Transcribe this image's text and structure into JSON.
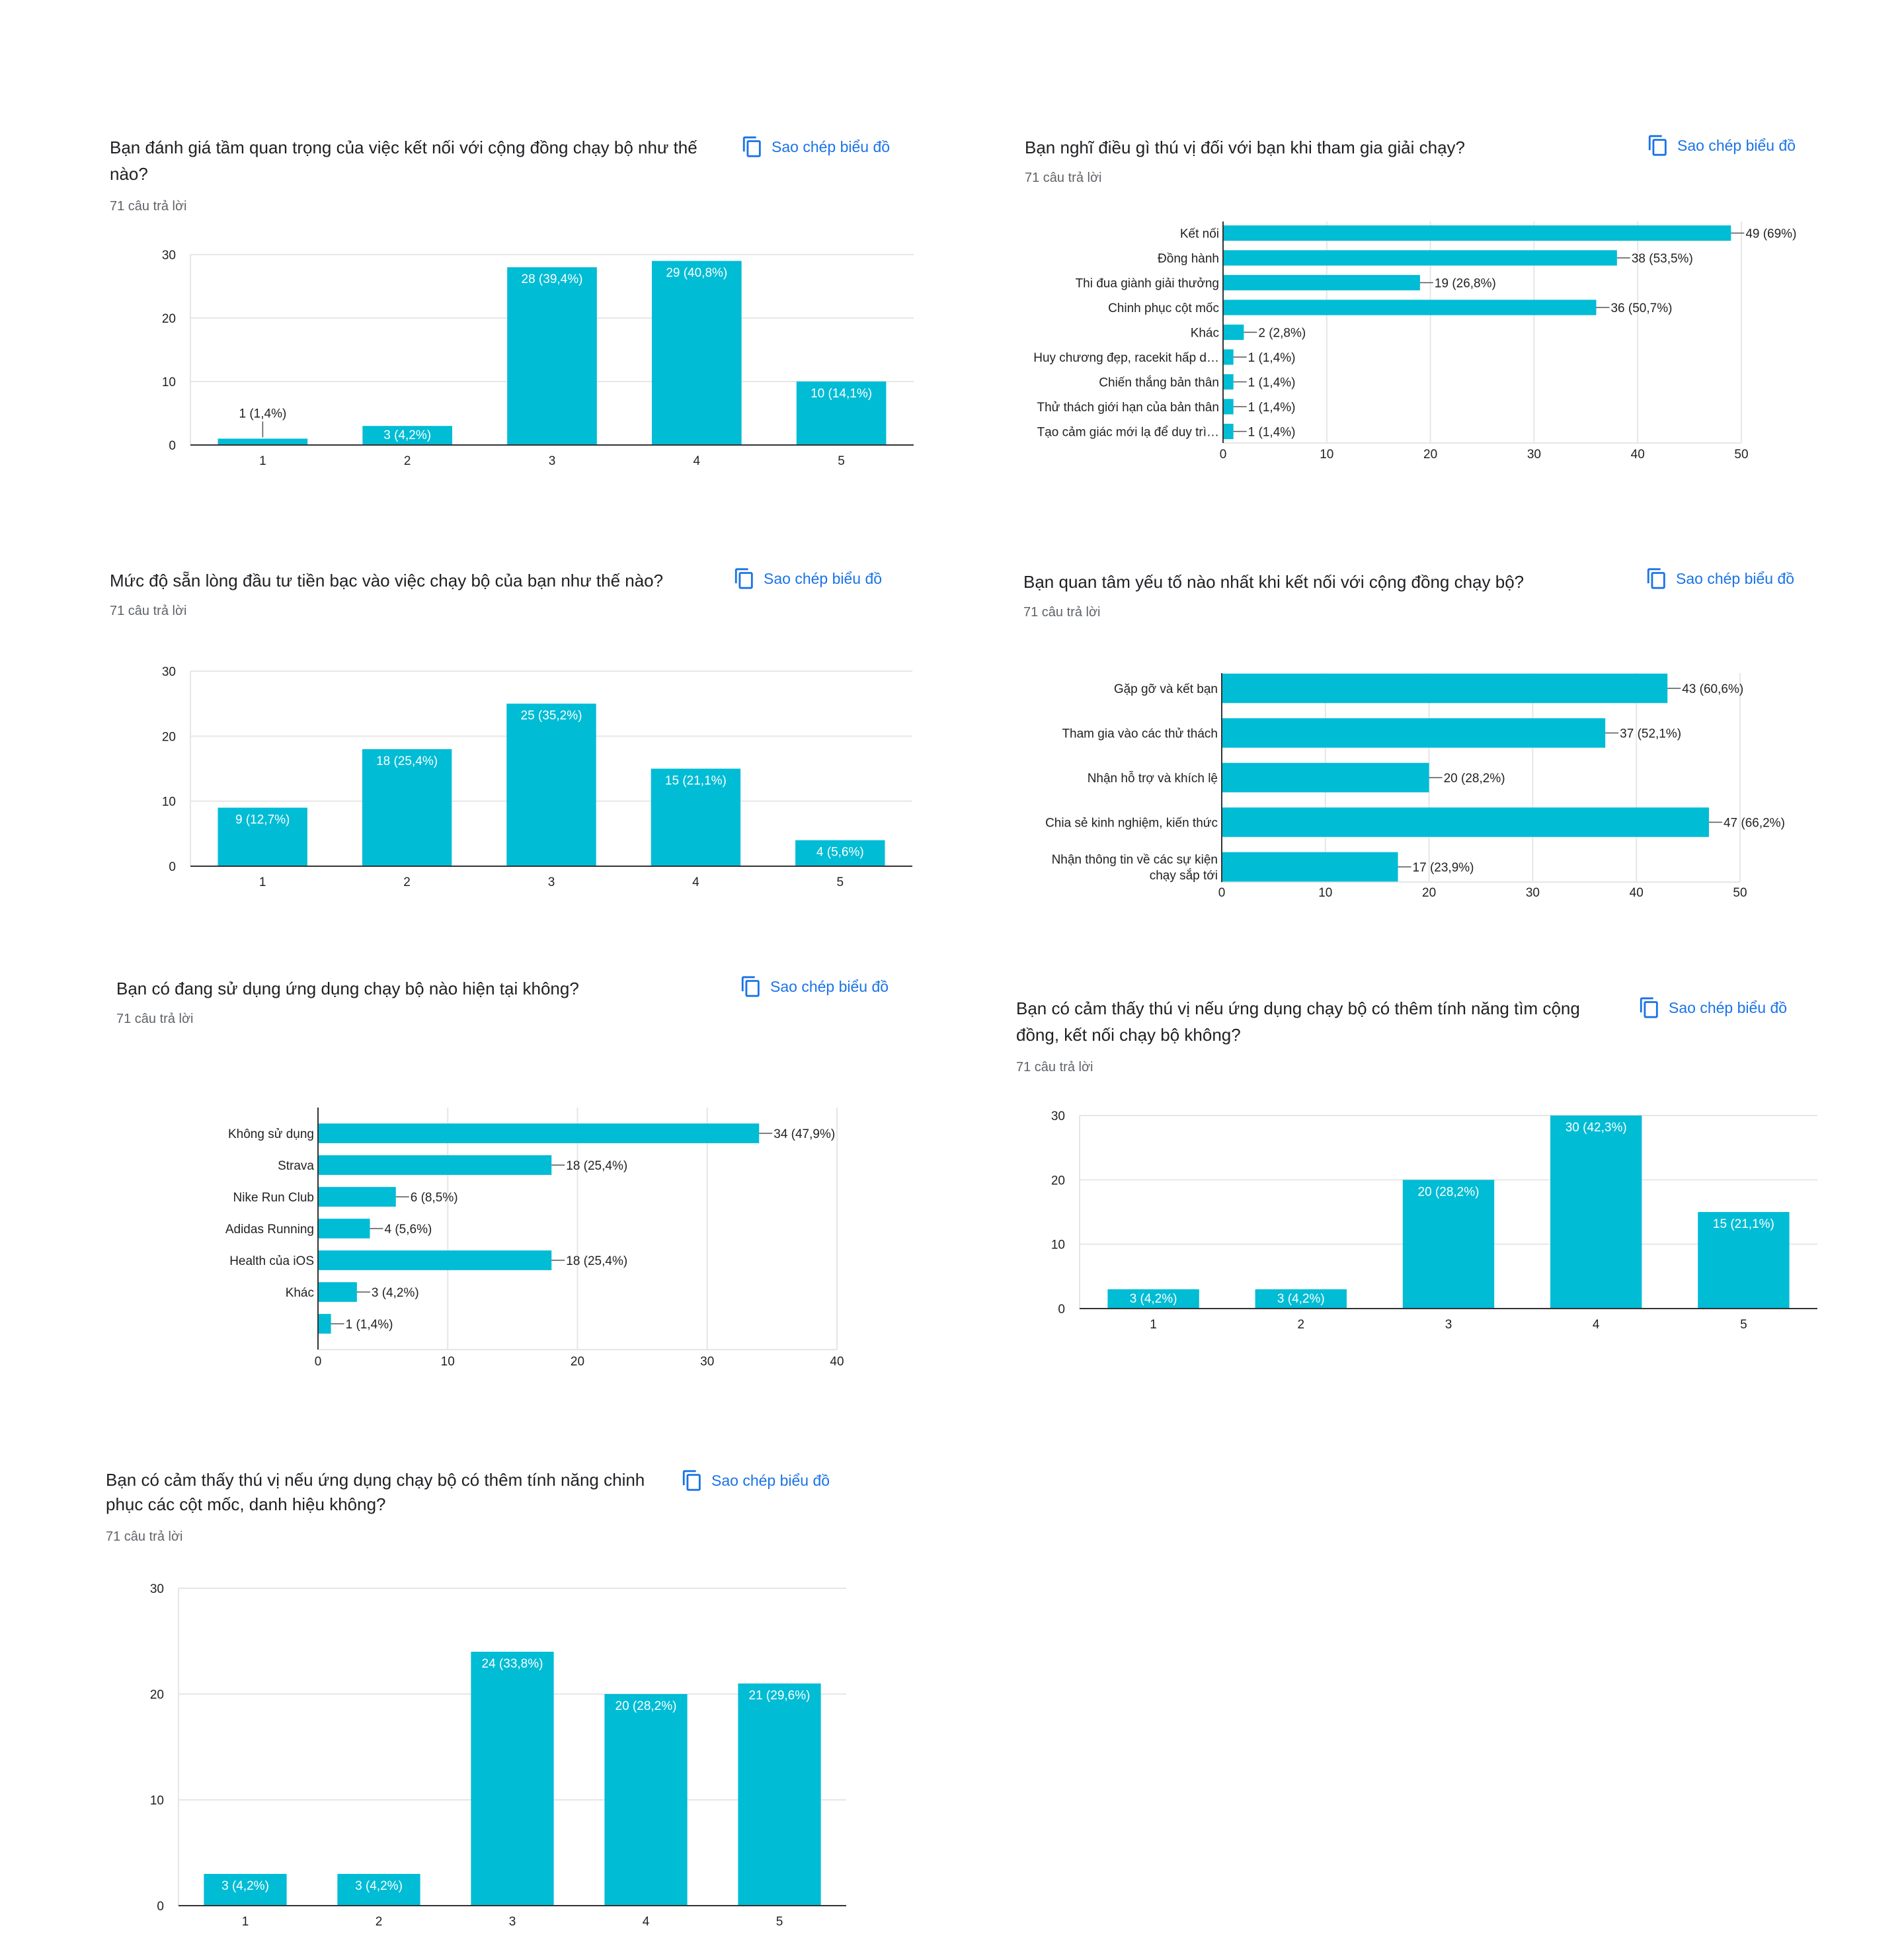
{
  "common": {
    "copy_label": "Sao chép biểu đồ",
    "copy_icon": "copy-icon",
    "bar_color": "#00bcd4",
    "link_color": "#1a73e8"
  },
  "chart_data": [
    {
      "id": "q1",
      "type": "bar",
      "orientation": "vertical",
      "title": "Bạn đánh giá tầm quan trọng của việc kết nối với cộng đồng chạy bộ như thế nào?",
      "subtitle": "71 câu trả lời",
      "categories": [
        "1",
        "2",
        "3",
        "4",
        "5"
      ],
      "values": [
        1,
        3,
        28,
        29,
        10
      ],
      "labels": [
        "1 (1,4%)",
        "3 (4,2%)",
        "28 (39,4%)",
        "29 (40,8%)",
        "10 (14,1%)"
      ],
      "ylim": [
        0,
        30
      ],
      "yticks": [
        0,
        10,
        20,
        30
      ],
      "grid": true
    },
    {
      "id": "q2",
      "type": "bar",
      "orientation": "horizontal",
      "title": "Bạn nghĩ điều gì thú vị đối với bạn khi tham gia giải chạy?",
      "subtitle": "71 câu trả lời",
      "categories": [
        "Kết nối",
        "Đồng hành",
        "Thi đua giành giải thưởng",
        "Chinh phục cột mốc",
        "Khác",
        "Huy chương đẹp, racekit hấp d…",
        "Chiến thắng bản thân",
        "Thử thách giới hạn của bản thân",
        "Tạo cảm giác mới lạ để duy trì…"
      ],
      "values": [
        49,
        38,
        19,
        36,
        2,
        1,
        1,
        1,
        1
      ],
      "labels": [
        "49 (69%)",
        "38 (53,5%)",
        "19 (26,8%)",
        "36 (50,7%)",
        "2 (2,8%)",
        "1 (1,4%)",
        "1 (1,4%)",
        "1 (1,4%)",
        "1 (1,4%)"
      ],
      "xlim": [
        0,
        50
      ],
      "xticks": [
        0,
        10,
        20,
        30,
        40,
        50
      ],
      "grid": true
    },
    {
      "id": "q3",
      "type": "bar",
      "orientation": "vertical",
      "title": "Mức độ sẵn lòng đầu tư tiền bạc vào việc chạy bộ của bạn như thế nào?",
      "subtitle": "71 câu trả lời",
      "categories": [
        "1",
        "2",
        "3",
        "4",
        "5"
      ],
      "values": [
        9,
        18,
        25,
        15,
        4
      ],
      "labels": [
        "9 (12,7%)",
        "18 (25,4%)",
        "25 (35,2%)",
        "15 (21,1%)",
        "4 (5,6%)"
      ],
      "ylim": [
        0,
        30
      ],
      "yticks": [
        0,
        10,
        20,
        30
      ],
      "grid": true
    },
    {
      "id": "q4",
      "type": "bar",
      "orientation": "horizontal",
      "title": "Bạn quan tâm yếu tố nào nhất khi kết nối với cộng đồng chạy bộ?",
      "subtitle": "71 câu trả lời",
      "categories": [
        "Gặp gỡ và kết bạn",
        "Tham gia vào các thử thách",
        "Nhận hỗ trợ và khích lệ",
        "Chia sẻ kinh nghiệm, kiến thức",
        "Nhận thông tin về các sự kiện chạy sắp tới"
      ],
      "category_lines": [
        [
          "Gặp gỡ và kết bạn"
        ],
        [
          "Tham gia vào các thử thách"
        ],
        [
          "Nhận hỗ trợ và khích lệ"
        ],
        [
          "Chia sẻ kinh nghiệm, kiến thức"
        ],
        [
          "Nhận thông tin về các sự kiện",
          "chạy sắp tới"
        ]
      ],
      "values": [
        43,
        37,
        20,
        47,
        17
      ],
      "labels": [
        "43 (60,6%)",
        "37 (52,1%)",
        "20 (28,2%)",
        "47 (66,2%)",
        "17 (23,9%)"
      ],
      "xlim": [
        0,
        50
      ],
      "xticks": [
        0,
        10,
        20,
        30,
        40,
        50
      ],
      "grid": true
    },
    {
      "id": "q5",
      "type": "bar",
      "orientation": "horizontal",
      "title": "Bạn có đang sử dụng ứng dụng chạy bộ nào hiện tại không?",
      "subtitle": "71 câu trả lời",
      "categories": [
        "Không sử dụng",
        "Strava",
        "Nike Run Club",
        "Adidas Running",
        "Health của iOS",
        "Khác",
        ""
      ],
      "values": [
        34,
        18,
        6,
        4,
        18,
        3,
        1
      ],
      "labels": [
        "34 (47,9%)",
        "18 (25,4%)",
        "6 (8,5%)",
        "4 (5,6%)",
        "18 (25,4%)",
        "3 (4,2%)",
        "1 (1,4%)"
      ],
      "xlim": [
        0,
        40
      ],
      "xticks": [
        0,
        10,
        20,
        30,
        40
      ],
      "grid": true
    },
    {
      "id": "q6",
      "type": "bar",
      "orientation": "vertical",
      "title": "Bạn có cảm thấy thú vị nếu ứng dụng chạy bộ có thêm tính năng tìm cộng đồng, kết nối chạy bộ không?",
      "subtitle": "71 câu trả lời",
      "categories": [
        "1",
        "2",
        "3",
        "4",
        "5"
      ],
      "values": [
        3,
        3,
        20,
        30,
        15
      ],
      "labels": [
        "3 (4,2%)",
        "3 (4,2%)",
        "20 (28,2%)",
        "30 (42,3%)",
        "15 (21,1%)"
      ],
      "ylim": [
        0,
        30
      ],
      "yticks": [
        0,
        10,
        20,
        30
      ],
      "grid": true
    },
    {
      "id": "q7",
      "type": "bar",
      "orientation": "vertical",
      "title": "Bạn có cảm thấy thú vị nếu ứng dụng chạy bộ có thêm tính năng chinh phục các cột mốc, danh hiệu không?",
      "subtitle": "71 câu trả lời",
      "categories": [
        "1",
        "2",
        "3",
        "4",
        "5"
      ],
      "values": [
        3,
        3,
        24,
        20,
        21
      ],
      "labels": [
        "3 (4,2%)",
        "3 (4,2%)",
        "24 (33,8%)",
        "20 (28,2%)",
        "21 (29,6%)"
      ],
      "ylim": [
        0,
        30
      ],
      "yticks": [
        0,
        10,
        20,
        30
      ],
      "grid": true
    }
  ]
}
